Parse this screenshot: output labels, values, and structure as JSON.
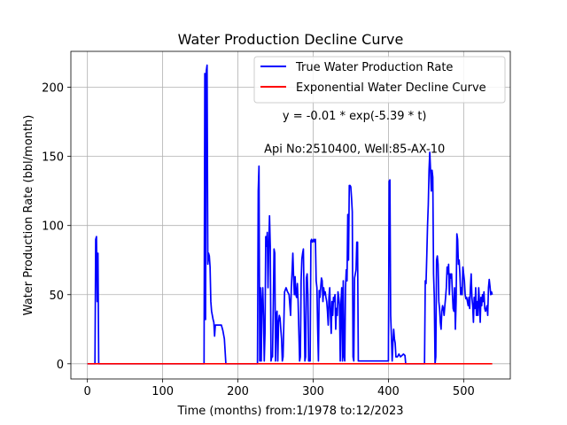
{
  "chart_data": {
    "type": "line",
    "title": "Water Production Decline Curve",
    "xlabel": "Time (months) from:1/1978 to:12/2023",
    "ylabel": "Water Production Rate (bbl/month)",
    "xlim": [
      -22,
      562
    ],
    "ylim": [
      -11,
      226
    ],
    "xticks": [
      0,
      100,
      200,
      300,
      400,
      500
    ],
    "yticks": [
      0,
      50,
      100,
      150,
      200
    ],
    "grid": true,
    "legend_position": "upper-right",
    "annotations": [
      {
        "text": "y = -0.01 * exp(-5.39 * t)",
        "x": 355,
        "y": 180
      },
      {
        "text": "Api No:2510400, Well:85-AX-10",
        "x": 355,
        "y": 156
      }
    ],
    "series": [
      {
        "name": "True Water Production Rate",
        "color": "#0000ff",
        "points": [
          [
            0,
            0
          ],
          [
            10,
            0
          ],
          [
            11,
            90
          ],
          [
            12,
            92
          ],
          [
            13,
            45
          ],
          [
            14,
            80
          ],
          [
            15,
            0
          ],
          [
            155,
            0
          ],
          [
            156,
            210
          ],
          [
            157,
            32
          ],
          [
            158,
            212
          ],
          [
            159,
            216
          ],
          [
            160,
            72
          ],
          [
            161,
            80
          ],
          [
            162,
            78
          ],
          [
            163,
            70
          ],
          [
            164,
            45
          ],
          [
            165,
            38
          ],
          [
            166,
            35
          ],
          [
            167,
            32
          ],
          [
            168,
            30
          ],
          [
            169,
            20
          ],
          [
            170,
            28
          ],
          [
            175,
            28
          ],
          [
            178,
            28
          ],
          [
            180,
            24
          ],
          [
            182,
            18
          ],
          [
            184,
            0
          ],
          [
            226,
            0
          ],
          [
            227,
            125
          ],
          [
            228,
            143
          ],
          [
            229,
            2
          ],
          [
            230,
            55
          ],
          [
            231,
            2
          ],
          [
            232,
            45
          ],
          [
            233,
            55
          ],
          [
            234,
            35
          ],
          [
            235,
            2
          ],
          [
            236,
            22
          ],
          [
            237,
            92
          ],
          [
            238,
            85
          ],
          [
            239,
            95
          ],
          [
            240,
            55
          ],
          [
            241,
            85
          ],
          [
            242,
            107
          ],
          [
            243,
            85
          ],
          [
            244,
            2
          ],
          [
            245,
            5
          ],
          [
            246,
            5
          ],
          [
            247,
            42
          ],
          [
            248,
            83
          ],
          [
            249,
            80
          ],
          [
            250,
            2
          ],
          [
            251,
            35
          ],
          [
            252,
            38
          ],
          [
            253,
            2
          ],
          [
            254,
            30
          ],
          [
            255,
            35
          ],
          [
            256,
            33
          ],
          [
            257,
            25
          ],
          [
            258,
            18
          ],
          [
            259,
            2
          ],
          [
            260,
            5
          ],
          [
            262,
            52
          ],
          [
            264,
            55
          ],
          [
            266,
            52
          ],
          [
            268,
            50
          ],
          [
            270,
            35
          ],
          [
            271,
            55
          ],
          [
            272,
            67
          ],
          [
            273,
            80
          ],
          [
            274,
            63
          ],
          [
            275,
            50
          ],
          [
            276,
            63
          ],
          [
            277,
            50
          ],
          [
            278,
            48
          ],
          [
            279,
            58
          ],
          [
            280,
            45
          ],
          [
            282,
            2
          ],
          [
            283,
            5
          ],
          [
            284,
            60
          ],
          [
            285,
            76
          ],
          [
            286,
            80
          ],
          [
            287,
            83
          ],
          [
            288,
            45
          ],
          [
            289,
            2
          ],
          [
            290,
            5
          ],
          [
            291,
            62
          ],
          [
            292,
            65
          ],
          [
            293,
            50
          ],
          [
            294,
            2
          ],
          [
            296,
            2
          ],
          [
            297,
            89
          ],
          [
            298,
            90
          ],
          [
            299,
            88
          ],
          [
            300,
            89
          ],
          [
            301,
            90
          ],
          [
            302,
            88
          ],
          [
            303,
            90
          ],
          [
            304,
            60
          ],
          [
            305,
            55
          ],
          [
            306,
            25
          ],
          [
            307,
            2
          ],
          [
            308,
            53
          ],
          [
            309,
            48
          ],
          [
            310,
            55
          ],
          [
            311,
            62
          ],
          [
            312,
            60
          ],
          [
            313,
            45
          ],
          [
            314,
            55
          ],
          [
            315,
            50
          ],
          [
            316,
            52
          ],
          [
            317,
            48
          ],
          [
            318,
            45
          ],
          [
            319,
            38
          ],
          [
            320,
            28
          ],
          [
            321,
            48
          ],
          [
            322,
            55
          ],
          [
            323,
            35
          ],
          [
            324,
            22
          ],
          [
            325,
            45
          ],
          [
            326,
            35
          ],
          [
            327,
            48
          ],
          [
            328,
            45
          ],
          [
            329,
            50
          ],
          [
            330,
            25
          ],
          [
            331,
            40
          ],
          [
            332,
            35
          ],
          [
            333,
            52
          ],
          [
            334,
            48
          ],
          [
            335,
            42
          ],
          [
            336,
            2
          ],
          [
            337,
            45
          ],
          [
            338,
            55
          ],
          [
            339,
            2
          ],
          [
            340,
            60
          ],
          [
            341,
            5
          ],
          [
            342,
            2
          ],
          [
            343,
            55
          ],
          [
            344,
            68
          ],
          [
            345,
            60
          ],
          [
            346,
            108
          ],
          [
            347,
            75
          ],
          [
            348,
            129
          ],
          [
            349,
            129
          ],
          [
            350,
            128
          ],
          [
            351,
            120
          ],
          [
            352,
            110
          ],
          [
            353,
            5
          ],
          [
            354,
            2
          ],
          [
            355,
            62
          ],
          [
            356,
            65
          ],
          [
            357,
            68
          ],
          [
            358,
            88
          ],
          [
            359,
            88
          ],
          [
            360,
            2
          ],
          [
            400,
            2
          ],
          [
            401,
            132
          ],
          [
            402,
            133
          ],
          [
            403,
            35
          ],
          [
            404,
            20
          ],
          [
            405,
            2
          ],
          [
            406,
            15
          ],
          [
            407,
            25
          ],
          [
            408,
            18
          ],
          [
            409,
            15
          ],
          [
            410,
            5
          ],
          [
            412,
            5
          ],
          [
            414,
            7
          ],
          [
            416,
            5
          ],
          [
            418,
            6
          ],
          [
            420,
            7
          ],
          [
            422,
            6
          ],
          [
            423,
            0
          ],
          [
            448,
            0
          ],
          [
            449,
            60
          ],
          [
            450,
            58
          ],
          [
            451,
            78
          ],
          [
            452,
            100
          ],
          [
            453,
            115
          ],
          [
            454,
            140
          ],
          [
            455,
            153
          ],
          [
            456,
            140
          ],
          [
            457,
            125
          ],
          [
            458,
            140
          ],
          [
            459,
            135
          ],
          [
            460,
            65
          ],
          [
            461,
            48
          ],
          [
            462,
            0
          ],
          [
            463,
            5
          ],
          [
            464,
            75
          ],
          [
            465,
            78
          ],
          [
            466,
            72
          ],
          [
            467,
            45
          ],
          [
            468,
            40
          ],
          [
            469,
            30
          ],
          [
            470,
            25
          ],
          [
            471,
            38
          ],
          [
            472,
            42
          ],
          [
            473,
            40
          ],
          [
            474,
            35
          ],
          [
            475,
            42
          ],
          [
            476,
            48
          ],
          [
            477,
            55
          ],
          [
            478,
            70
          ],
          [
            479,
            65
          ],
          [
            480,
            72
          ],
          [
            481,
            50
          ],
          [
            482,
            65
          ],
          [
            483,
            62
          ],
          [
            484,
            65
          ],
          [
            485,
            52
          ],
          [
            486,
            40
          ],
          [
            487,
            38
          ],
          [
            488,
            55
          ],
          [
            489,
            25
          ],
          [
            490,
            45
          ],
          [
            491,
            94
          ],
          [
            492,
            90
          ],
          [
            493,
            72
          ],
          [
            494,
            75
          ],
          [
            495,
            65
          ],
          [
            496,
            50
          ],
          [
            497,
            55
          ],
          [
            498,
            50
          ],
          [
            499,
            70
          ],
          [
            500,
            65
          ],
          [
            501,
            60
          ],
          [
            502,
            50
          ],
          [
            503,
            47
          ],
          [
            504,
            48
          ],
          [
            505,
            45
          ],
          [
            506,
            42
          ],
          [
            507,
            48
          ],
          [
            508,
            40
          ],
          [
            509,
            55
          ],
          [
            510,
            65
          ],
          [
            511,
            48
          ],
          [
            512,
            42
          ],
          [
            513,
            30
          ],
          [
            514,
            48
          ],
          [
            515,
            40
          ],
          [
            516,
            55
          ],
          [
            517,
            35
          ],
          [
            518,
            45
          ],
          [
            519,
            35
          ],
          [
            520,
            55
          ],
          [
            521,
            45
          ],
          [
            522,
            30
          ],
          [
            523,
            48
          ],
          [
            524,
            42
          ],
          [
            525,
            50
          ],
          [
            526,
            45
          ],
          [
            527,
            52
          ],
          [
            528,
            40
          ],
          [
            529,
            38
          ],
          [
            530,
            40
          ],
          [
            531,
            42
          ],
          [
            532,
            35
          ],
          [
            533,
            55
          ],
          [
            534,
            61
          ],
          [
            535,
            56
          ],
          [
            536,
            50
          ],
          [
            537,
            52
          ],
          [
            538,
            50
          ]
        ]
      },
      {
        "name": "Exponential Water Decline Curve",
        "color": "#ff0000",
        "points": [
          [
            0,
            0
          ],
          [
            538,
            0
          ]
        ]
      }
    ]
  }
}
